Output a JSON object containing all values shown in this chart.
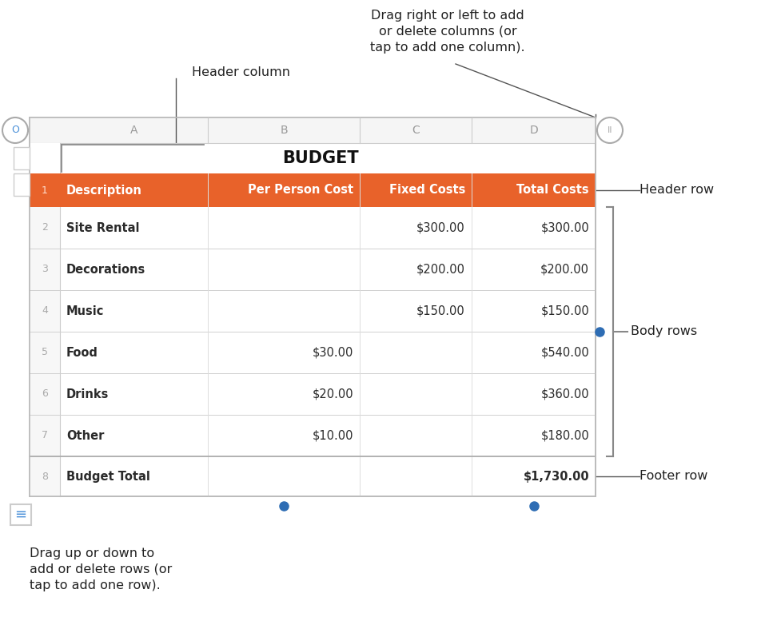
{
  "title": "BUDGET",
  "header_row_color": "#E8622A",
  "header_text_color": "#FFFFFF",
  "body_bg_color": "#FFFFFF",
  "row_line_color": "#CCCCCC",
  "table_border_color": "#BBBBBB",
  "col_header_bg": "#F5F5F5",
  "col_letters": [
    "A",
    "B",
    "C",
    "D"
  ],
  "row_numbers": [
    "1",
    "2",
    "3",
    "4",
    "5",
    "6",
    "7",
    "8"
  ],
  "header_cols": [
    "Description",
    "Per Person Cost",
    "Fixed Costs",
    "Total Costs"
  ],
  "body_rows": [
    [
      "Site Rental",
      "",
      "$300.00",
      "$300.00"
    ],
    [
      "Decorations",
      "",
      "$200.00",
      "$200.00"
    ],
    [
      "Music",
      "",
      "$150.00",
      "$150.00"
    ],
    [
      "Food",
      "$30.00",
      "",
      "$540.00"
    ],
    [
      "Drinks",
      "$20.00",
      "",
      "$360.00"
    ],
    [
      "Other",
      "$10.00",
      "",
      "$180.00"
    ]
  ],
  "footer_row": [
    "Budget Total",
    "",
    "",
    "$1,730.00"
  ],
  "annotation_header_col": "Header column",
  "annotation_header_row": "Header row",
  "annotation_body_rows": "Body rows",
  "annotation_footer_row": "Footer row",
  "annotation_top_line1": "Drag right or left to add",
  "annotation_top_line2": "or delete columns (or",
  "annotation_top_line3": "tap to add one column).",
  "annotation_bottom_line1": "Drag up or down to",
  "annotation_bottom_line2": "add or delete rows (or",
  "annotation_bottom_line3": "tap to add one row).",
  "blue_dot_color": "#2E6DB4",
  "bracket_color": "#888888",
  "ann_line_color": "#555555",
  "ann_color": "#222222",
  "ann_fontsize": 11.5
}
